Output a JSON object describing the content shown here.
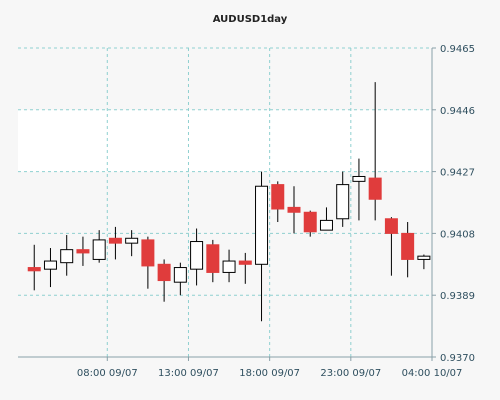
{
  "chart_data": {
    "type": "candlestick",
    "title": "AUDUSD1day",
    "ylim": [
      0.937,
      0.9465
    ],
    "y_ticks": [
      "0.9465",
      "0.9446",
      "0.9427",
      "0.9408",
      "0.9389",
      "0.9370"
    ],
    "x_ticks": [
      {
        "label": "08:00 09/07",
        "index": 4.5
      },
      {
        "label": "13:00 09/07",
        "index": 9.5
      },
      {
        "label": "18:00 09/07",
        "index": 14.5
      },
      {
        "label": "23:00 09/07",
        "index": 19.5
      },
      {
        "label": "04:00 10/07",
        "index": 24.5
      }
    ],
    "colors": {
      "up": "#ffffff",
      "down": "#e03c3c",
      "outline": "#000000",
      "band": "#ffffff",
      "background": "#f7f7f7",
      "grid": "#8fd0d0"
    },
    "candles": [
      {
        "open": 0.93975,
        "high": 0.94045,
        "low": 0.93905,
        "close": 0.93965
      },
      {
        "open": 0.9397,
        "high": 0.94035,
        "low": 0.93915,
        "close": 0.93995
      },
      {
        "open": 0.9399,
        "high": 0.94075,
        "low": 0.9395,
        "close": 0.9403
      },
      {
        "open": 0.9403,
        "high": 0.9407,
        "low": 0.9398,
        "close": 0.9402
      },
      {
        "open": 0.94,
        "high": 0.9409,
        "low": 0.9399,
        "close": 0.9406
      },
      {
        "open": 0.94065,
        "high": 0.941,
        "low": 0.94,
        "close": 0.9405
      },
      {
        "open": 0.9405,
        "high": 0.9409,
        "low": 0.9401,
        "close": 0.94065
      },
      {
        "open": 0.9406,
        "high": 0.9407,
        "low": 0.9391,
        "close": 0.9398
      },
      {
        "open": 0.93985,
        "high": 0.94,
        "low": 0.9387,
        "close": 0.93935
      },
      {
        "open": 0.9393,
        "high": 0.9399,
        "low": 0.9389,
        "close": 0.93975
      },
      {
        "open": 0.9397,
        "high": 0.94095,
        "low": 0.9392,
        "close": 0.94055
      },
      {
        "open": 0.94045,
        "high": 0.9406,
        "low": 0.9393,
        "close": 0.9396
      },
      {
        "open": 0.9396,
        "high": 0.9403,
        "low": 0.9393,
        "close": 0.93995
      },
      {
        "open": 0.93995,
        "high": 0.9402,
        "low": 0.93925,
        "close": 0.93985
      },
      {
        "open": 0.93985,
        "high": 0.9427,
        "low": 0.9381,
        "close": 0.94225
      },
      {
        "open": 0.9423,
        "high": 0.9424,
        "low": 0.94115,
        "close": 0.94155
      },
      {
        "open": 0.9416,
        "high": 0.94225,
        "low": 0.9408,
        "close": 0.94145
      },
      {
        "open": 0.94145,
        "high": 0.9415,
        "low": 0.9407,
        "close": 0.94085
      },
      {
        "open": 0.9409,
        "high": 0.9416,
        "low": 0.9409,
        "close": 0.9412
      },
      {
        "open": 0.94125,
        "high": 0.9427,
        "low": 0.941,
        "close": 0.9423
      },
      {
        "open": 0.9424,
        "high": 0.9431,
        "low": 0.9412,
        "close": 0.94255
      },
      {
        "open": 0.9425,
        "high": 0.94545,
        "low": 0.9412,
        "close": 0.94185
      },
      {
        "open": 0.94125,
        "high": 0.9413,
        "low": 0.9395,
        "close": 0.9408
      },
      {
        "open": 0.9408,
        "high": 0.94115,
        "low": 0.93945,
        "close": 0.94
      },
      {
        "open": 0.94,
        "high": 0.94015,
        "low": 0.9397,
        "close": 0.9401
      }
    ]
  }
}
